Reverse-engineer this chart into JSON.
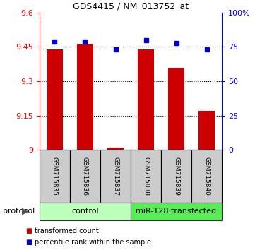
{
  "title": "GDS4415 / NM_013752_at",
  "samples": [
    "GSM715835",
    "GSM715836",
    "GSM715837",
    "GSM715838",
    "GSM715839",
    "GSM715840"
  ],
  "red_values": [
    9.44,
    9.46,
    9.01,
    9.44,
    9.36,
    9.17
  ],
  "blue_values": [
    79,
    79,
    73,
    80,
    78,
    73
  ],
  "ylim_left": [
    9.0,
    9.6
  ],
  "ylim_right": [
    0,
    100
  ],
  "yticks_left": [
    9.0,
    9.15,
    9.3,
    9.45,
    9.6
  ],
  "ytick_labels_left": [
    "9",
    "9.15",
    "9.3",
    "9.45",
    "9.6"
  ],
  "yticks_right": [
    0,
    25,
    50,
    75,
    100
  ],
  "ytick_labels_right": [
    "0",
    "25",
    "50",
    "75",
    "100%"
  ],
  "hlines": [
    9.15,
    9.3,
    9.45
  ],
  "control_label": "control",
  "mir_label": "miR-128 transfected",
  "control_color": "#bbffbb",
  "mir_color": "#55ee55",
  "protocol_label": "protocol",
  "legend_red": "transformed count",
  "legend_blue": "percentile rank within the sample",
  "bar_color": "#cc0000",
  "dot_color": "#0000cc",
  "bar_width": 0.55,
  "background_color": "#ffffff",
  "label_box_color": "#cccccc",
  "title_fontsize": 9
}
